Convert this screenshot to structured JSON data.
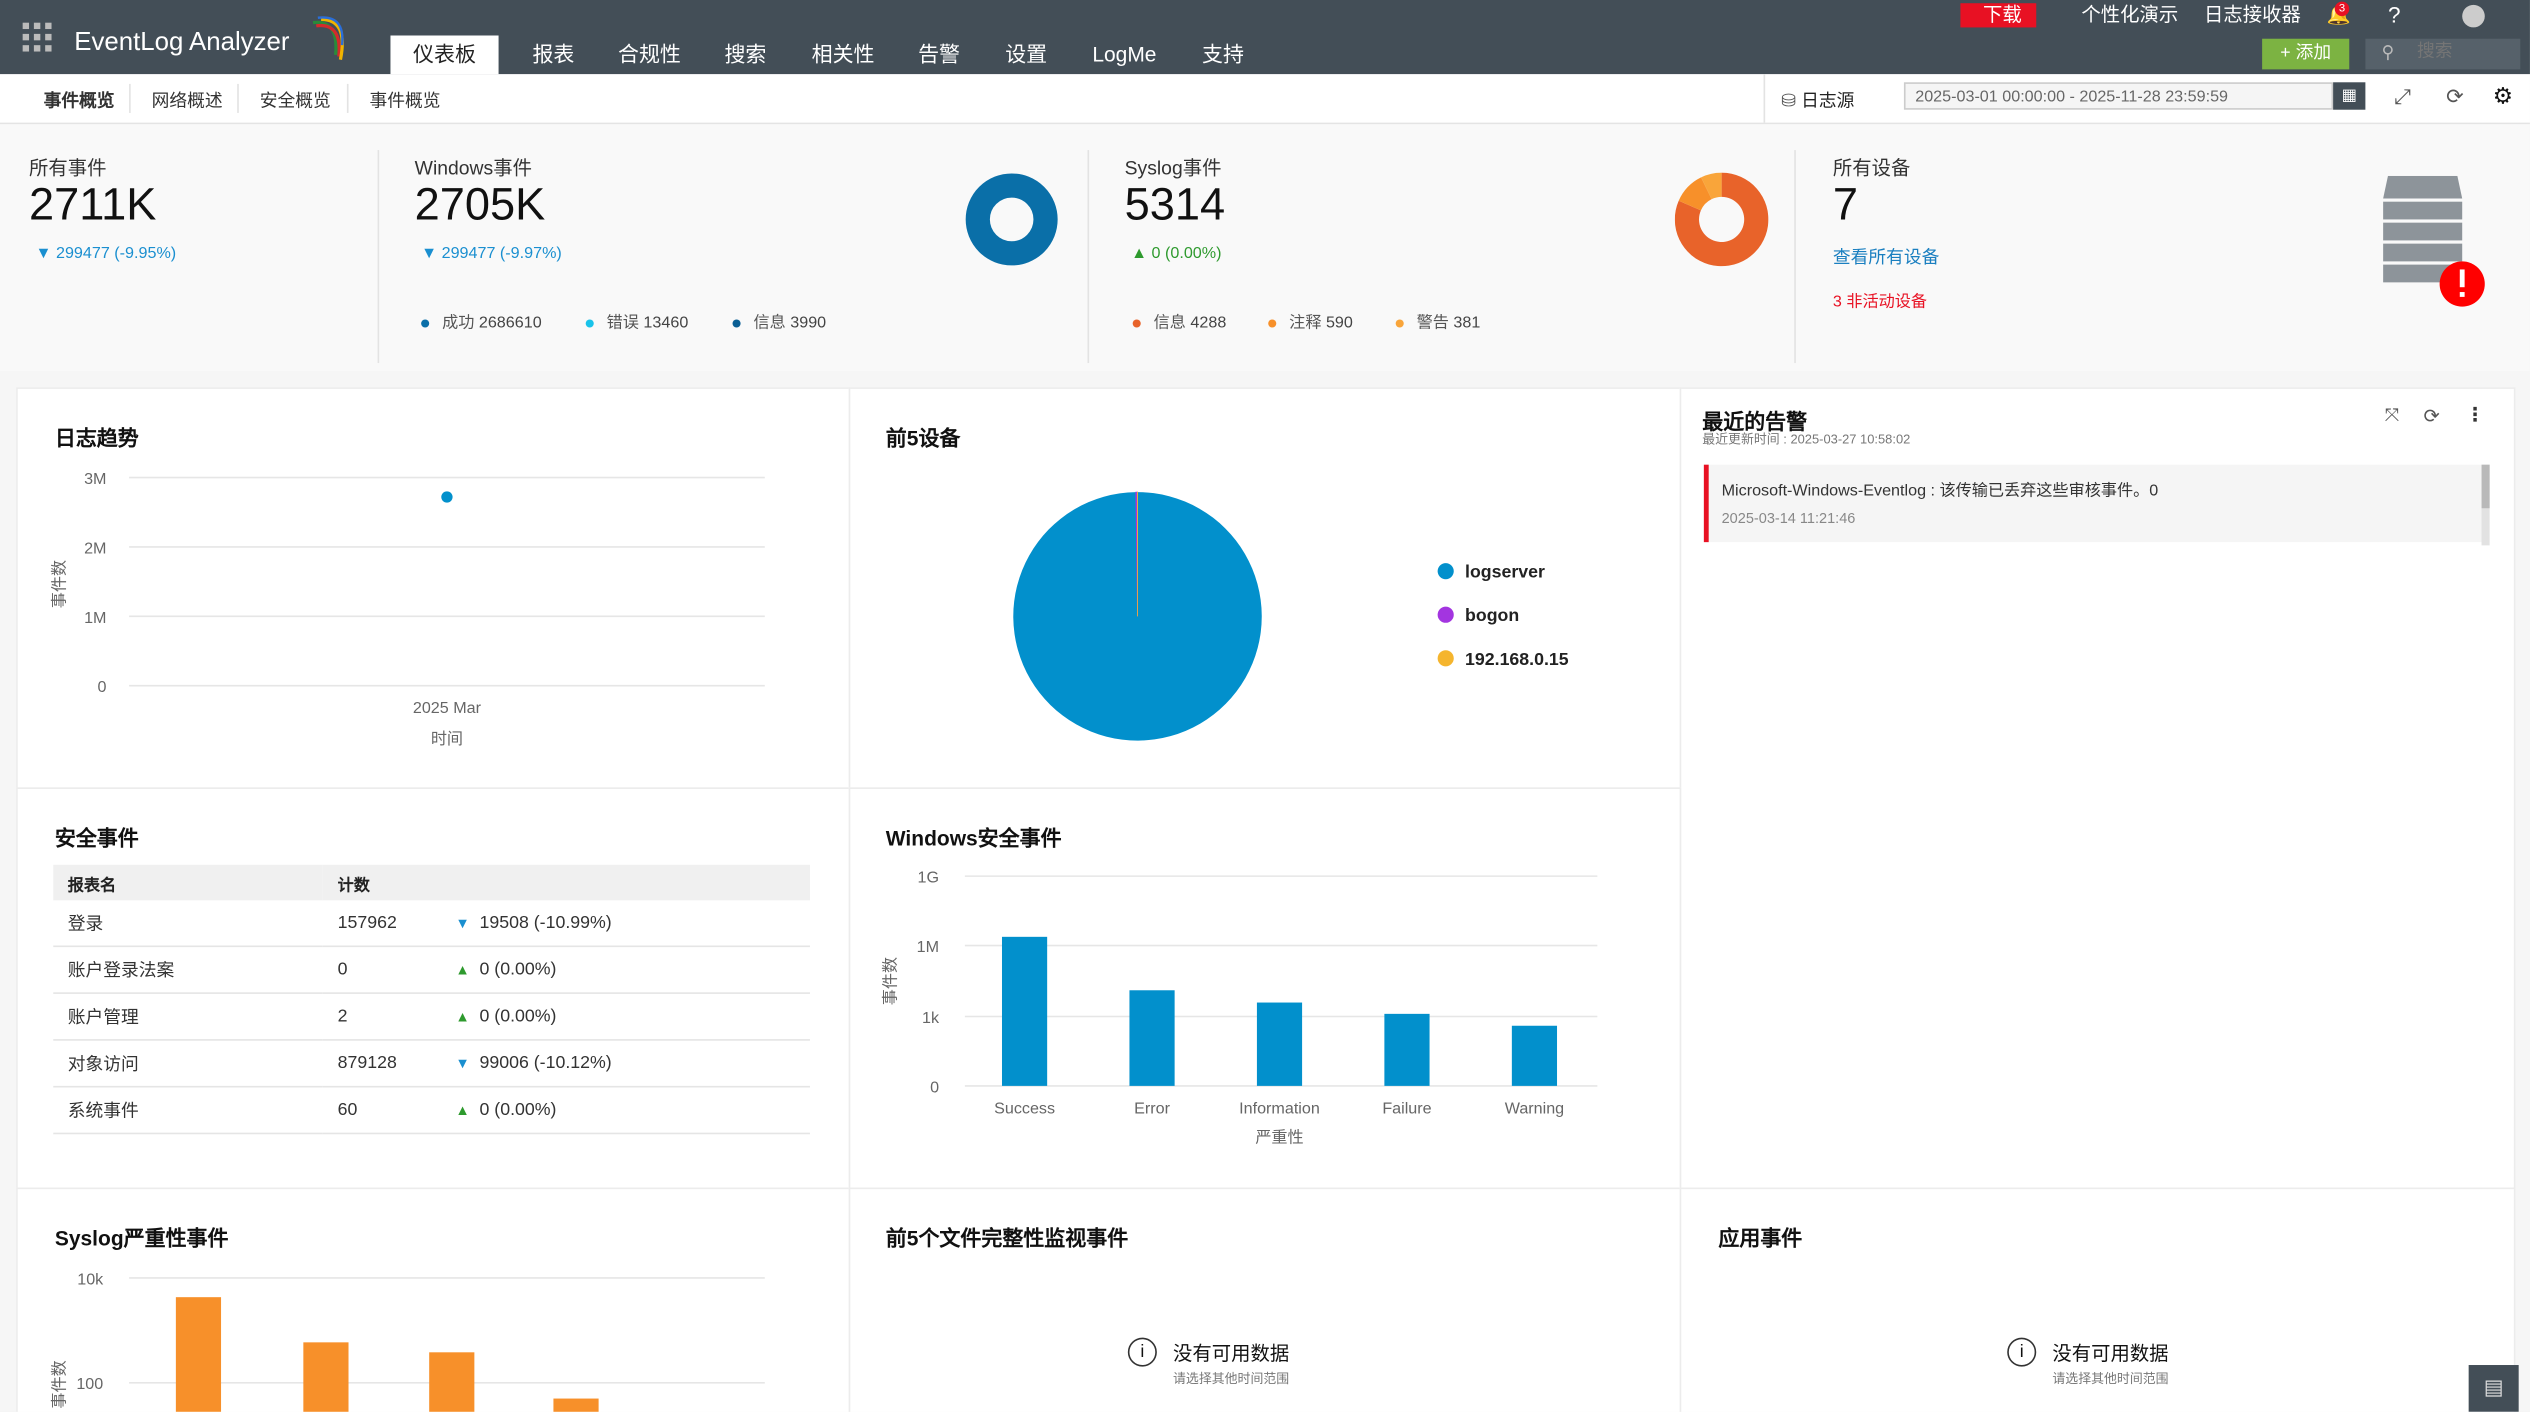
{
  "app": {
    "title": "EventLog Analyzer"
  },
  "nav": {
    "tabs": [
      "仪表板",
      "报表",
      "合规性",
      "搜索",
      "相关性",
      "告警",
      "设置",
      "LogMe",
      "支持"
    ],
    "active": 0
  },
  "topright": {
    "download": "下载",
    "demo": "个性化演示",
    "receiver": "日志接收器",
    "bell_count": "3",
    "help": "?",
    "add": "添加",
    "search_placeholder": "搜索"
  },
  "subnav": {
    "tabs": [
      "事件概览",
      "网络概述",
      "安全概览",
      "事件概览"
    ],
    "active": 0,
    "log_source": "日志源",
    "date_range": "2025-03-01 00:00:00 - 2025-11-28 23:59:59"
  },
  "kpis": {
    "all_events": {
      "label": "所有事件",
      "value": "2711K",
      "delta": "299477 (-9.95%)"
    },
    "windows": {
      "label": "Windows事件",
      "value": "2705K",
      "delta": "299477 (-9.97%)",
      "legend": [
        {
          "label": "成功",
          "value": "2686610",
          "color": "#0a6fa8"
        },
        {
          "label": "错误",
          "value": "13460",
          "color": "#19c3ea"
        },
        {
          "label": "信息",
          "value": "3990",
          "color": "#0a5f94"
        }
      ]
    },
    "syslog": {
      "label": "Syslog事件",
      "value": "5314",
      "delta": "0 (0.00%)",
      "legend": [
        {
          "label": "信息",
          "value": "4288",
          "color": "#e8632a"
        },
        {
          "label": "注释",
          "value": "590",
          "color": "#f7902a"
        },
        {
          "label": "警告",
          "value": "381",
          "color": "#f9a53a"
        }
      ]
    },
    "devices": {
      "label": "所有设备",
      "value": "7",
      "view_all": "查看所有设备",
      "inactive": "3 非活动设备"
    }
  },
  "colors": {
    "down": "#1a8fd0",
    "up": "#2e9a2e",
    "primary": "#0290cc",
    "orange": "#f7902a",
    "red": "#e81123",
    "green": "#7cb342"
  },
  "log_trend": {
    "title": "日志趋势"
  },
  "top5": {
    "title": "前5设备"
  },
  "security": {
    "title": "安全事件",
    "headers": [
      "报表名",
      "计数",
      ""
    ],
    "rows": [
      {
        "name": "登录",
        "count": "157962",
        "change": "19508 (-10.99%)",
        "dir": "down"
      },
      {
        "name": "账户登录法案",
        "count": "0",
        "change": "0 (0.00%)",
        "dir": "up"
      },
      {
        "name": "账户管理",
        "count": "2",
        "change": "0 (0.00%)",
        "dir": "up"
      },
      {
        "name": "对象访问",
        "count": "879128",
        "change": "99006 (-10.12%)",
        "dir": "down"
      },
      {
        "name": "系统事件",
        "count": "60",
        "change": "0 (0.00%)",
        "dir": "up"
      }
    ]
  },
  "winsec": {
    "title": "Windows安全事件"
  },
  "alerts": {
    "title": "最近的告警",
    "updated": "最近更新时间 : 2025-03-27 10:58:02",
    "items": [
      {
        "message": "Microsoft-Windows-Eventlog : 该传输已丢弃这些审核事件。0",
        "time": "2025-03-14 11:21:46"
      }
    ]
  },
  "syslog_sev": {
    "title": "Syslog严重性事件"
  },
  "fim": {
    "title": "前5个文件完整性监视事件",
    "nodata": "没有可用数据",
    "hint": "请选择其他时间范围"
  },
  "app_events": {
    "title": "应用事件",
    "nodata": "没有可用数据",
    "hint": "请选择其他时间范围"
  },
  "chart_data": [
    {
      "type": "line",
      "title": "日志趋势",
      "xlabel": "时间",
      "ylabel": "事件数",
      "categories": [
        "2025 Mar"
      ],
      "values": [
        2720000
      ],
      "yticks": [
        "0",
        "1M",
        "2M",
        "3M"
      ],
      "ylim": [
        0,
        3000000
      ],
      "grid": true
    },
    {
      "type": "pie",
      "title": "前5设备",
      "categories": [
        "logserver",
        "bogon",
        "192.168.0.15"
      ],
      "values": [
        2705000,
        5300,
        500
      ],
      "colors": [
        "#0290cc",
        "#a335e0",
        "#f5b52e"
      ],
      "legend": "right"
    },
    {
      "type": "bar",
      "title": "Windows安全事件",
      "xlabel": "严重性",
      "ylabel": "事件数",
      "scale": "log",
      "categories": [
        "Success",
        "Error",
        "Information",
        "Failure",
        "Warning"
      ],
      "values": [
        2686610,
        13460,
        3990,
        1300,
        400
      ],
      "yticks": [
        "0",
        "1k",
        "1M",
        "1G"
      ],
      "color": "#0290cc",
      "grid": true
    },
    {
      "type": "bar",
      "title": "Syslog严重性事件",
      "ylabel": "事件数",
      "scale": "log",
      "values": [
        4288,
        590,
        381,
        50
      ],
      "yticks": [
        "100",
        "10k"
      ],
      "color": "#f7902a",
      "grid": true
    }
  ]
}
